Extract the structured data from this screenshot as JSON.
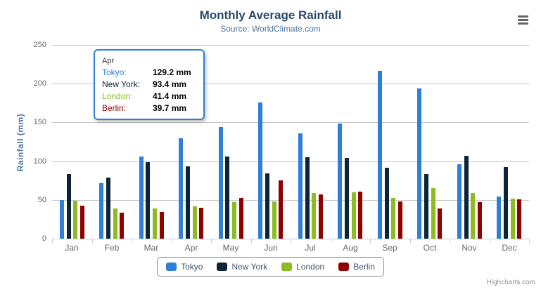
{
  "chart_data": {
    "type": "bar",
    "title": "Monthly Average Rainfall",
    "subtitle": "Source: WorldClimate.com",
    "xlabel": "",
    "ylabel": "Rainfall (mm)",
    "ylim": [
      0,
      250
    ],
    "yticks": [
      0,
      50,
      100,
      150,
      200,
      250
    ],
    "grid": true,
    "legend_position": "bottom",
    "categories": [
      "Jan",
      "Feb",
      "Mar",
      "Apr",
      "May",
      "Jun",
      "Jul",
      "Aug",
      "Sep",
      "Oct",
      "Nov",
      "Dec"
    ],
    "series": [
      {
        "name": "Tokyo",
        "color": "#2f7ed8",
        "values": [
          49.9,
          71.5,
          106.4,
          129.2,
          144.0,
          176.0,
          135.6,
          148.5,
          216.4,
          194.1,
          95.6,
          54.4
        ]
      },
      {
        "name": "New York",
        "color": "#0d233a",
        "values": [
          83.6,
          78.8,
          98.5,
          93.4,
          106.0,
          84.5,
          105.0,
          104.3,
          91.2,
          83.5,
          106.6,
          92.3
        ]
      },
      {
        "name": "London",
        "color": "#8bbc21",
        "values": [
          48.9,
          38.8,
          39.3,
          41.4,
          47.0,
          48.3,
          59.0,
          59.6,
          52.4,
          65.2,
          59.3,
          51.2
        ]
      },
      {
        "name": "Berlin",
        "color": "#910000",
        "values": [
          42.4,
          33.2,
          34.5,
          39.7,
          52.6,
          75.5,
          57.4,
          60.4,
          47.6,
          39.1,
          46.8,
          51.1
        ]
      }
    ]
  },
  "tooltip": {
    "header": "Apr",
    "border_color": "#2f7ed8",
    "rows": [
      {
        "label": "Tokyo:",
        "value": "129.2 mm",
        "color": "#2f7ed8"
      },
      {
        "label": "New York:",
        "value": "93.4 mm",
        "color": "#0d233a"
      },
      {
        "label": "London:",
        "value": "41.4 mm",
        "color": "#8bbc21"
      },
      {
        "label": "Berlin:",
        "value": "39.7 mm",
        "color": "#910000"
      }
    ]
  },
  "icons": {
    "menu": "hamburger"
  },
  "credits_label": "Highcharts.com",
  "style_colors": {
    "title": "#274b6d",
    "subtitle": "#4d759e",
    "axis_title": "#4d759e",
    "axis_labels": "#666666",
    "gridline": "#c9c9c9",
    "axis_line": "#c0d0e0",
    "legend_text": "#3e576f"
  }
}
